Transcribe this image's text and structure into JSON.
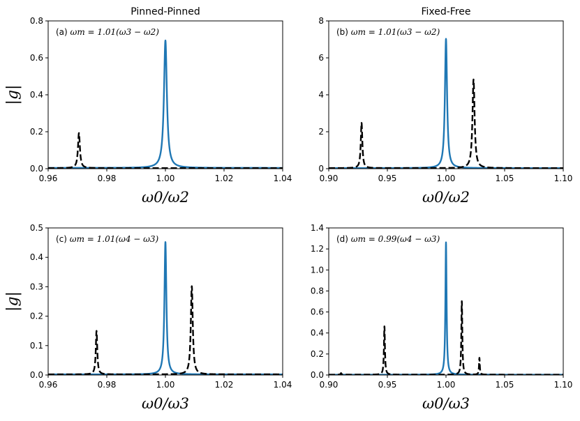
{
  "colors": {
    "solid": "#1f77b4",
    "dashed": "#000000"
  },
  "chart_data": [
    {
      "type": "line",
      "panel": "(a)",
      "title": "Pinned-Pinned",
      "annotation_prefix": "(a)",
      "annotation_math": "ωm = 1.01(ω3 − ω2)",
      "xlabel": "ω0/ω2",
      "ylabel": "|g|",
      "xlim": [
        0.96,
        1.04
      ],
      "ylim": [
        0.0,
        0.8
      ],
      "xticks": [
        0.96,
        0.98,
        1.0,
        1.02,
        1.04
      ],
      "xtick_labels": [
        "0.96",
        "0.98",
        "1.00",
        "1.02",
        "1.04"
      ],
      "yticks": [
        0.0,
        0.2,
        0.4,
        0.6,
        0.8
      ],
      "ytick_labels": [
        "0.0",
        "0.2",
        "0.4",
        "0.6",
        "0.8"
      ],
      "series": [
        {
          "name": "solid",
          "style": "solid",
          "baseline": 0.004,
          "peaks": [
            {
              "x": 1.0,
              "height": 0.69,
              "width": 0.0006
            }
          ]
        },
        {
          "name": "dashed",
          "style": "dashed",
          "baseline": 0.003,
          "peaks": [
            {
              "x": 0.9705,
              "height": 0.19,
              "width": 0.0004
            },
            {
              "x": 1.0,
              "height": 0.0,
              "width": 0.0004
            }
          ]
        }
      ]
    },
    {
      "type": "line",
      "panel": "(b)",
      "title": "Fixed-Free",
      "annotation_prefix": "(b)",
      "annotation_math": "ωm = 1.01(ω3 − ω2)",
      "xlabel": "ω0/ω2",
      "ylabel": "",
      "xlim": [
        0.9,
        1.1
      ],
      "ylim": [
        0,
        8
      ],
      "xticks": [
        0.9,
        0.95,
        1.0,
        1.05,
        1.1
      ],
      "xtick_labels": [
        "0.90",
        "0.95",
        "1.00",
        "1.05",
        "1.10"
      ],
      "yticks": [
        0,
        2,
        4,
        6,
        8
      ],
      "ytick_labels": [
        "0",
        "2",
        "4",
        "6",
        "8"
      ],
      "series": [
        {
          "name": "solid",
          "style": "solid",
          "baseline": 0.03,
          "peaks": [
            {
              "x": 1.0,
              "height": 7.0,
              "width": 0.0011
            }
          ]
        },
        {
          "name": "dashed",
          "style": "dashed",
          "baseline": 0.03,
          "peaks": [
            {
              "x": 0.928,
              "height": 2.45,
              "width": 0.0008
            },
            {
              "x": 1.0235,
              "height": 4.8,
              "width": 0.0011
            }
          ]
        }
      ]
    },
    {
      "type": "line",
      "panel": "(c)",
      "title": "",
      "annotation_prefix": "(c)",
      "annotation_math": "ωm = 1.01(ω4 − ω3)",
      "xlabel": "ω0/ω3",
      "ylabel": "|g|",
      "xlim": [
        0.96,
        1.04
      ],
      "ylim": [
        0.0,
        0.5
      ],
      "xticks": [
        0.96,
        0.98,
        1.0,
        1.02,
        1.04
      ],
      "xtick_labels": [
        "0.96",
        "0.98",
        "1.00",
        "1.02",
        "1.04"
      ],
      "yticks": [
        0.0,
        0.1,
        0.2,
        0.3,
        0.4,
        0.5
      ],
      "ytick_labels": [
        "0.0",
        "0.1",
        "0.2",
        "0.3",
        "0.4",
        "0.5"
      ],
      "series": [
        {
          "name": "solid",
          "style": "solid",
          "baseline": 0.002,
          "peaks": [
            {
              "x": 1.0,
              "height": 0.45,
              "width": 0.0004
            }
          ]
        },
        {
          "name": "dashed",
          "style": "dashed",
          "baseline": 0.002,
          "peaks": [
            {
              "x": 0.9765,
              "height": 0.148,
              "width": 0.0003
            },
            {
              "x": 1.009,
              "height": 0.3,
              "width": 0.0004
            }
          ]
        }
      ]
    },
    {
      "type": "line",
      "panel": "(d)",
      "title": "",
      "annotation_prefix": "(d)",
      "annotation_math": "ωm = 0.99(ω4 − ω3)",
      "xlabel": "ω0/ω3",
      "ylabel": "",
      "xlim": [
        0.9,
        1.1
      ],
      "ylim": [
        0.0,
        1.4
      ],
      "xticks": [
        0.9,
        0.95,
        1.0,
        1.05,
        1.1
      ],
      "xtick_labels": [
        "0.90",
        "0.95",
        "1.00",
        "1.05",
        "1.10"
      ],
      "yticks": [
        0.0,
        0.2,
        0.4,
        0.6,
        0.8,
        1.0,
        1.2,
        1.4
      ],
      "ytick_labels": [
        "0.0",
        "0.2",
        "0.4",
        "0.6",
        "0.8",
        "1.0",
        "1.2",
        "1.4"
      ],
      "series": [
        {
          "name": "solid",
          "style": "solid",
          "baseline": 0.003,
          "peaks": [
            {
              "x": 1.0,
              "height": 1.26,
              "width": 0.0006
            }
          ]
        },
        {
          "name": "dashed",
          "style": "dashed",
          "baseline": 0.003,
          "peaks": [
            {
              "x": 0.9105,
              "height": 0.015,
              "width": 0.0005
            },
            {
              "x": 0.9475,
              "height": 0.46,
              "width": 0.0005
            },
            {
              "x": 1.0135,
              "height": 0.7,
              "width": 0.0005
            },
            {
              "x": 1.0285,
              "height": 0.16,
              "width": 0.0004
            }
          ]
        }
      ]
    }
  ]
}
